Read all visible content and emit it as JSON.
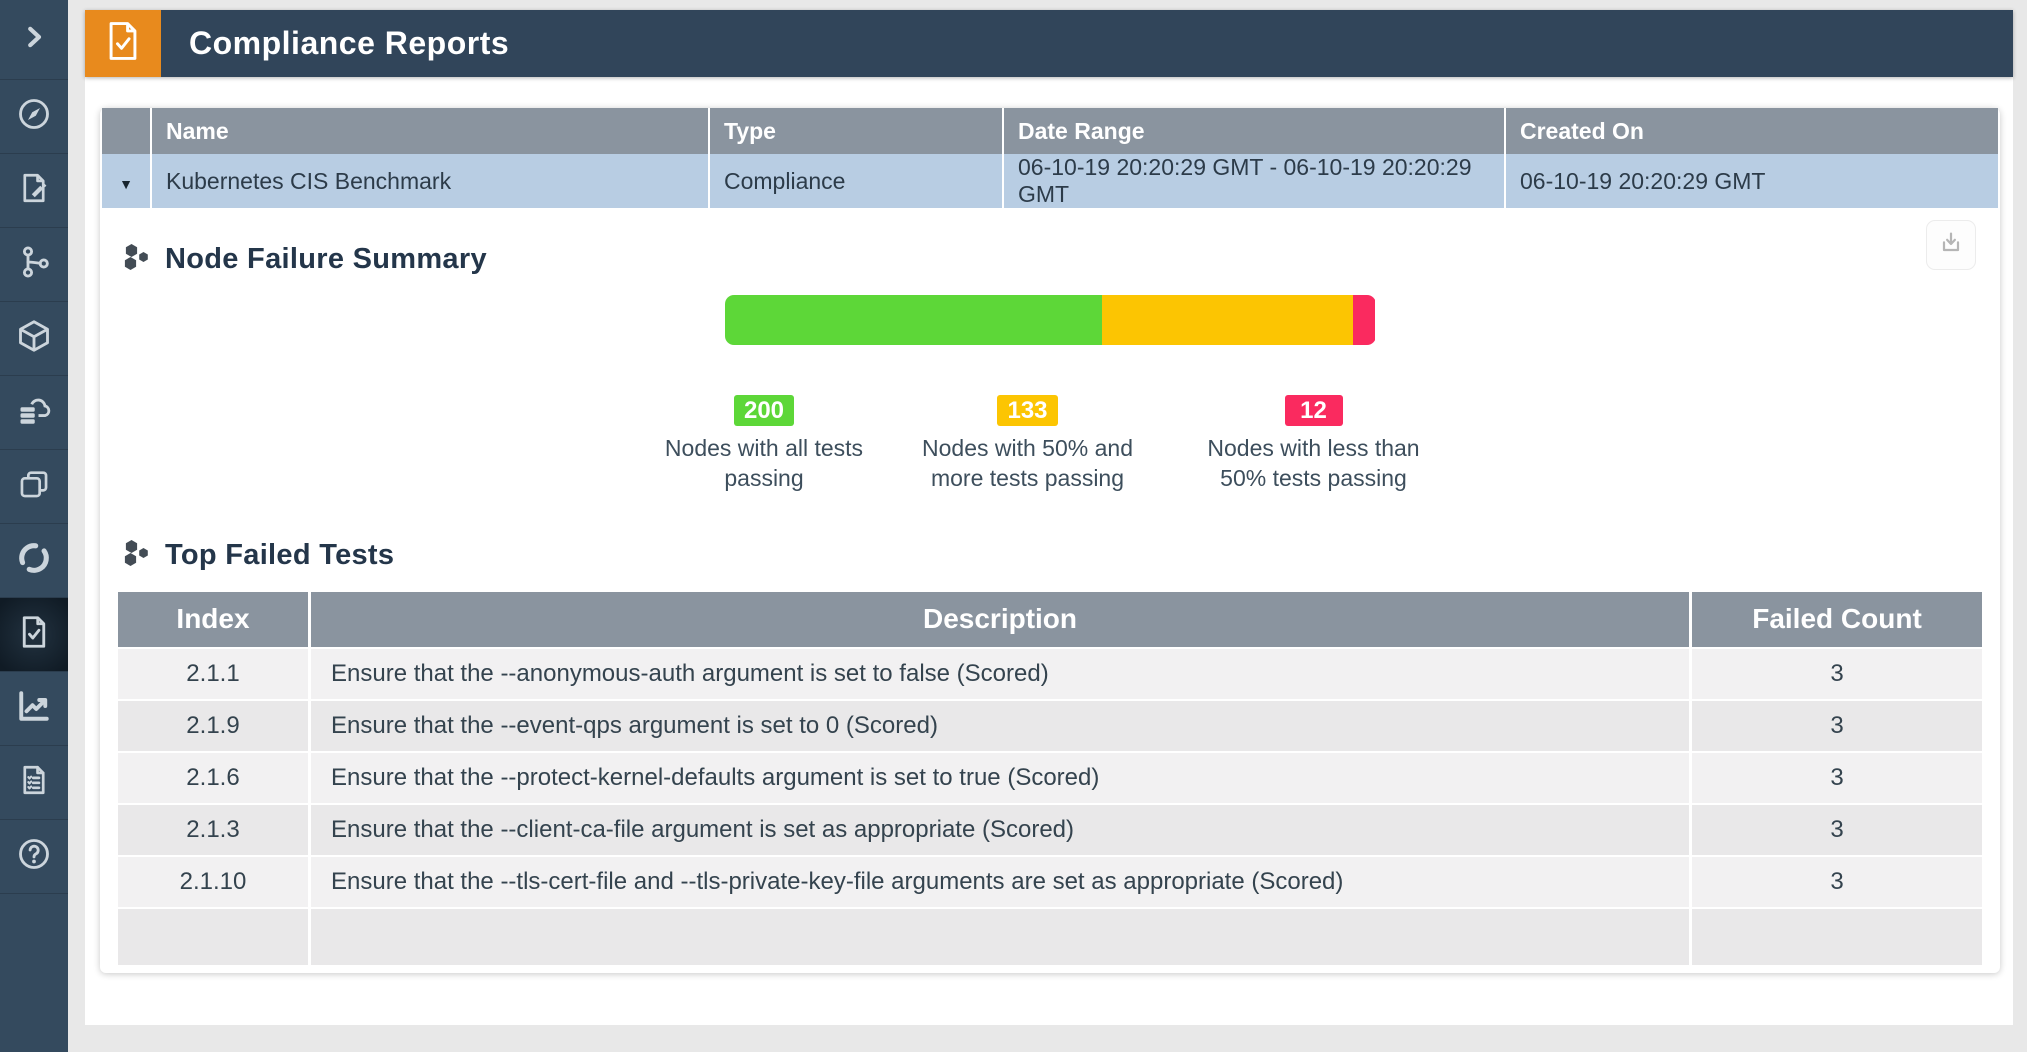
{
  "page": {
    "title": "Compliance Reports"
  },
  "colors": {
    "sidebar": "#344a5e",
    "topbar": "#31455a",
    "accent_orange": "#e88a1d",
    "table_header_gray": "#8a949f",
    "report_row_blue": "#b8cde3",
    "green": "#5dd738",
    "yellow": "#fcc502",
    "pink": "#fa2a5f"
  },
  "icons": {
    "sidebar": [
      "chevron-right-icon",
      "compass-icon",
      "document-edit-icon",
      "topology-icon",
      "cube-icon",
      "cloud-db-icon",
      "layers-icon",
      "refresh-icon",
      "compliance-doc-icon",
      "line-chart-icon",
      "checklist-icon",
      "help-icon"
    ],
    "header": "compliance-doc-icon",
    "section_heading": "hexagon-cluster-icon",
    "download": "download-icon",
    "row_expander": "triangle-down-icon"
  },
  "reports_table": {
    "columns": [
      "Name",
      "Type",
      "Date Range",
      "Created On"
    ],
    "expander_glyph": "▼",
    "rows": [
      {
        "name": "Kubernetes CIS Benchmark",
        "type": "Compliance",
        "date_range": "06-10-19 20:20:29 GMT - 06-10-19 20:20:29 GMT",
        "created_on": "06-10-19 20:20:29 GMT"
      }
    ]
  },
  "node_failure_summary": {
    "title": "Node Failure Summary",
    "legend": [
      {
        "value": 200,
        "label": "Nodes with all tests passing",
        "color": "#5dd738"
      },
      {
        "value": 133,
        "label": "Nodes with 50% and more tests passing",
        "color": "#fcc502"
      },
      {
        "value": 12,
        "label": "Nodes with less than 50% tests passing",
        "color": "#fa2a5f"
      }
    ]
  },
  "chart_data": {
    "type": "bar",
    "title": "Node Failure Summary",
    "categories": [
      "Nodes with all tests passing",
      "Nodes with 50% and more tests passing",
      "Nodes with less than 50% tests passing"
    ],
    "values": [
      200,
      133,
      12
    ],
    "colors": [
      "#5dd738",
      "#fcc502",
      "#fa2a5f"
    ],
    "layout": "single horizontal stacked bar, legend below with value badges"
  },
  "top_failed_tests": {
    "title": "Top Failed Tests",
    "columns": [
      "Index",
      "Description",
      "Failed Count"
    ],
    "rows": [
      {
        "index": "2.1.1",
        "description": "Ensure that the --anonymous-auth argument is set to false (Scored)",
        "failed_count": "3"
      },
      {
        "index": "2.1.9",
        "description": "Ensure that the --event-qps argument is set to 0 (Scored)",
        "failed_count": "3"
      },
      {
        "index": "2.1.6",
        "description": "Ensure that the --protect-kernel-defaults argument is set to true (Scored)",
        "failed_count": "3"
      },
      {
        "index": "2.1.3",
        "description": "Ensure that the --client-ca-file argument is set as appropriate (Scored)",
        "failed_count": "3"
      },
      {
        "index": "2.1.10",
        "description": "Ensure that the --tls-cert-file and --tls-private-key-file arguments are set as appropriate (Scored)",
        "failed_count": "3"
      }
    ]
  }
}
